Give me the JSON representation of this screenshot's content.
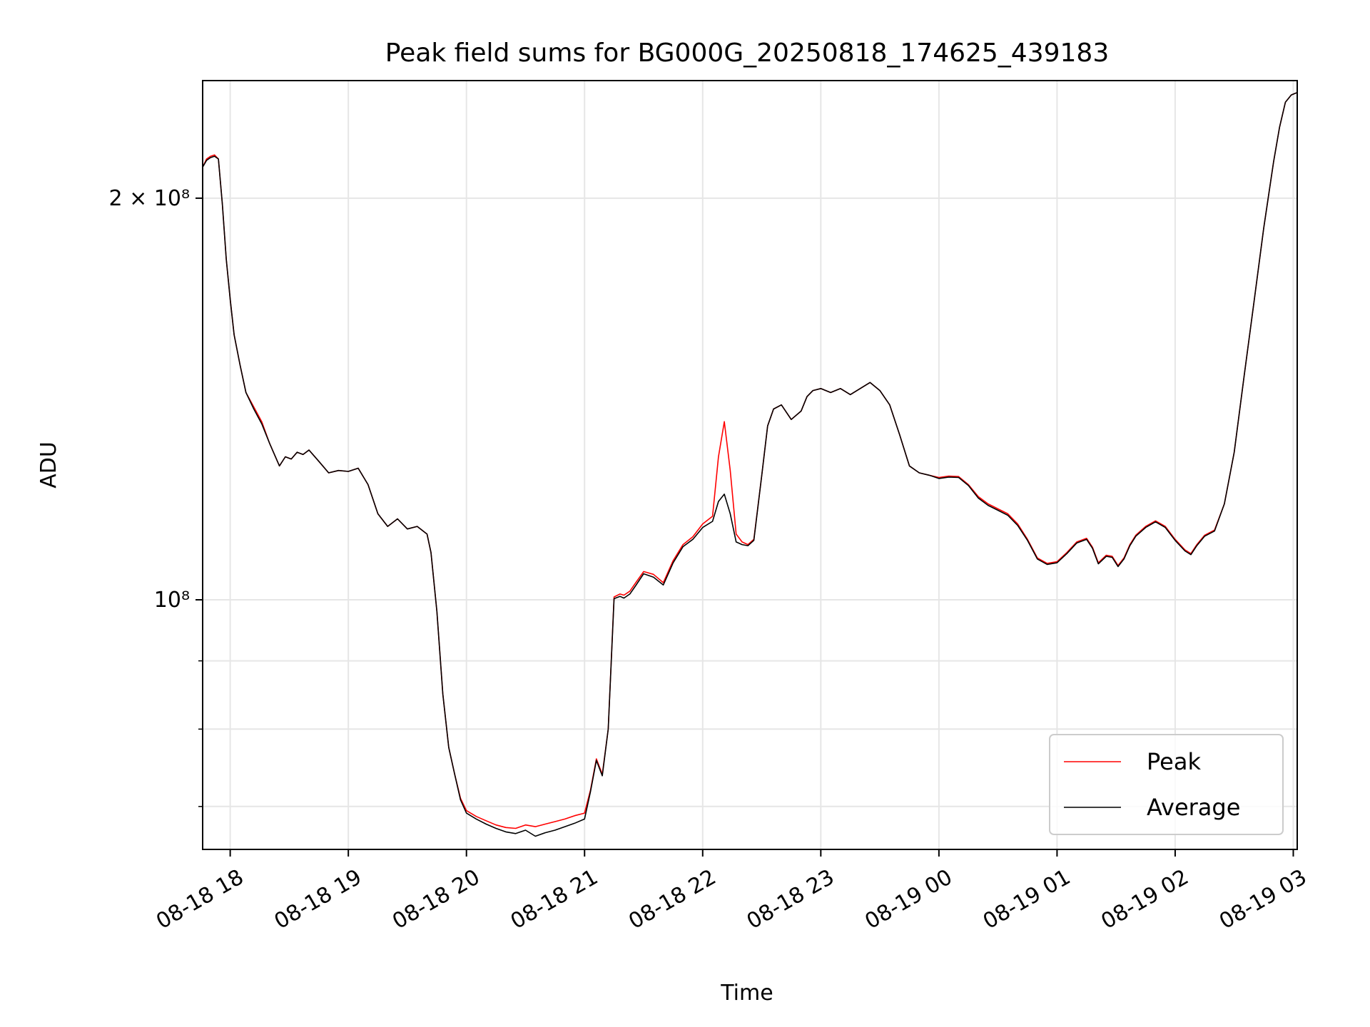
{
  "chart_data": {
    "type": "line",
    "title": "Peak field sums for BG000G_20250818_174625_439183",
    "xlabel": "Time",
    "ylabel": "ADU",
    "y_scale": "log",
    "ylim": [
      65000000,
      245000000
    ],
    "xlim": [
      "2025-08-18 17:46",
      "2025-08-19 03:02"
    ],
    "x_ticks": [
      {
        "t": "2025-08-18 18:00",
        "label": "08-18 18"
      },
      {
        "t": "2025-08-18 19:00",
        "label": "08-18 19"
      },
      {
        "t": "2025-08-18 20:00",
        "label": "08-18 20"
      },
      {
        "t": "2025-08-18 21:00",
        "label": "08-18 21"
      },
      {
        "t": "2025-08-18 22:00",
        "label": "08-18 22"
      },
      {
        "t": "2025-08-18 23:00",
        "label": "08-18 23"
      },
      {
        "t": "2025-08-19 00:00",
        "label": "08-19 00"
      },
      {
        "t": "2025-08-19 01:00",
        "label": "08-19 01"
      },
      {
        "t": "2025-08-19 02:00",
        "label": "08-19 02"
      },
      {
        "t": "2025-08-19 03:00",
        "label": "08-19 03"
      }
    ],
    "y_ticks": [
      {
        "v": 100000000,
        "label": "10⁸"
      },
      {
        "v": 200000000,
        "label": "2 × 10⁸"
      }
    ],
    "y_minor_ticks": [
      70000000,
      80000000,
      90000000
    ],
    "grid": true,
    "legend_position": "bottom-right",
    "x": [
      "2025-08-18 17:46",
      "2025-08-18 17:48",
      "2025-08-18 17:50",
      "2025-08-18 17:52",
      "2025-08-18 17:54",
      "2025-08-18 17:56",
      "2025-08-18 17:58",
      "2025-08-18 18:00",
      "2025-08-18 18:02",
      "2025-08-18 18:05",
      "2025-08-18 18:08",
      "2025-08-18 18:12",
      "2025-08-18 18:16",
      "2025-08-18 18:20",
      "2025-08-18 18:25",
      "2025-08-18 18:28",
      "2025-08-18 18:31",
      "2025-08-18 18:34",
      "2025-08-18 18:37",
      "2025-08-18 18:40",
      "2025-08-18 18:45",
      "2025-08-18 18:50",
      "2025-08-18 18:55",
      "2025-08-18 19:00",
      "2025-08-18 19:05",
      "2025-08-18 19:10",
      "2025-08-18 19:15",
      "2025-08-18 19:20",
      "2025-08-18 19:25",
      "2025-08-18 19:30",
      "2025-08-18 19:35",
      "2025-08-18 19:40",
      "2025-08-18 19:42",
      "2025-08-18 19:45",
      "2025-08-18 19:48",
      "2025-08-18 19:51",
      "2025-08-18 19:54",
      "2025-08-18 19:57",
      "2025-08-18 20:00",
      "2025-08-18 20:05",
      "2025-08-18 20:10",
      "2025-08-18 20:15",
      "2025-08-18 20:20",
      "2025-08-18 20:25",
      "2025-08-18 20:30",
      "2025-08-18 20:35",
      "2025-08-18 20:40",
      "2025-08-18 20:45",
      "2025-08-18 20:50",
      "2025-08-18 20:55",
      "2025-08-18 21:00",
      "2025-08-18 21:03",
      "2025-08-18 21:06",
      "2025-08-18 21:09",
      "2025-08-18 21:12",
      "2025-08-18 21:15",
      "2025-08-18 21:18",
      "2025-08-18 21:20",
      "2025-08-18 21:23",
      "2025-08-18 21:26",
      "2025-08-18 21:30",
      "2025-08-18 21:35",
      "2025-08-18 21:40",
      "2025-08-18 21:45",
      "2025-08-18 21:50",
      "2025-08-18 21:55",
      "2025-08-18 22:00",
      "2025-08-18 22:05",
      "2025-08-18 22:08",
      "2025-08-18 22:11",
      "2025-08-18 22:14",
      "2025-08-18 22:17",
      "2025-08-18 22:20",
      "2025-08-18 22:23",
      "2025-08-18 22:26",
      "2025-08-18 22:30",
      "2025-08-18 22:33",
      "2025-08-18 22:36",
      "2025-08-18 22:40",
      "2025-08-18 22:45",
      "2025-08-18 22:50",
      "2025-08-18 22:53",
      "2025-08-18 22:56",
      "2025-08-18 23:00",
      "2025-08-18 23:05",
      "2025-08-18 23:10",
      "2025-08-18 23:15",
      "2025-08-18 23:20",
      "2025-08-18 23:25",
      "2025-08-18 23:30",
      "2025-08-18 23:35",
      "2025-08-18 23:40",
      "2025-08-18 23:45",
      "2025-08-18 23:50",
      "2025-08-18 23:55",
      "2025-08-19 00:00",
      "2025-08-19 00:05",
      "2025-08-19 00:10",
      "2025-08-19 00:15",
      "2025-08-19 00:20",
      "2025-08-19 00:25",
      "2025-08-19 00:30",
      "2025-08-19 00:35",
      "2025-08-19 00:40",
      "2025-08-19 00:45",
      "2025-08-19 00:50",
      "2025-08-19 00:55",
      "2025-08-19 01:00",
      "2025-08-19 01:05",
      "2025-08-19 01:10",
      "2025-08-19 01:15",
      "2025-08-19 01:18",
      "2025-08-19 01:21",
      "2025-08-19 01:25",
      "2025-08-19 01:28",
      "2025-08-19 01:31",
      "2025-08-19 01:34",
      "2025-08-19 01:37",
      "2025-08-19 01:40",
      "2025-08-19 01:45",
      "2025-08-19 01:50",
      "2025-08-19 01:55",
      "2025-08-19 02:00",
      "2025-08-19 02:05",
      "2025-08-19 02:08",
      "2025-08-19 02:11",
      "2025-08-19 02:15",
      "2025-08-19 02:20",
      "2025-08-19 02:25",
      "2025-08-19 02:30",
      "2025-08-19 02:35",
      "2025-08-19 02:40",
      "2025-08-19 02:45",
      "2025-08-19 02:50",
      "2025-08-19 02:53",
      "2025-08-19 02:56",
      "2025-08-19 02:59",
      "2025-08-19 03:02"
    ],
    "series": [
      {
        "name": "Peak",
        "color": "#ff0000",
        "values": [
          211000000,
          214000000,
          215000000,
          215500000,
          214000000,
          198000000,
          180000000,
          168000000,
          158000000,
          150000000,
          143000000,
          139500000,
          136000000,
          131000000,
          126000000,
          128000000,
          127500000,
          129000000,
          128500000,
          129500000,
          127000000,
          124500000,
          125000000,
          124800000,
          125500000,
          122000000,
          116000000,
          113500000,
          115000000,
          113000000,
          113500000,
          112000000,
          108500000,
          98000000,
          85000000,
          77500000,
          74000000,
          71000000,
          69500000,
          68800000,
          68300000,
          67800000,
          67500000,
          67400000,
          67800000,
          67600000,
          67900000,
          68200000,
          68500000,
          68900000,
          69200000,
          72000000,
          76000000,
          74000000,
          80000000,
          100500000,
          101000000,
          100800000,
          101500000,
          103000000,
          105000000,
          104500000,
          103000000,
          107000000,
          110000000,
          111500000,
          114000000,
          115500000,
          128000000,
          136000000,
          125000000,
          112000000,
          110500000,
          110000000,
          111000000,
          124000000,
          135000000,
          139000000,
          140000000,
          136500000,
          138500000,
          142000000,
          143500000,
          144000000,
          143000000,
          144000000,
          142500000,
          144000000,
          145500000,
          143500000,
          140000000,
          133000000,
          126000000,
          124500000,
          124000000,
          123500000,
          123800000,
          123700000,
          122000000,
          119500000,
          118000000,
          117000000,
          116000000,
          114000000,
          111000000,
          107500000,
          106500000,
          106800000,
          108500000,
          110500000,
          111200000,
          109500000,
          106600000,
          108000000,
          107800000,
          106100000,
          107500000,
          110000000,
          111800000,
          113500000,
          114600000,
          113500000,
          111000000,
          109000000,
          108300000,
          110000000,
          111800000,
          112800000,
          118000000,
          129000000,
          147000000,
          167000000,
          190000000,
          213000000,
          226000000,
          236000000,
          239000000,
          240000000
        ]
      },
      {
        "name": "Average",
        "color": "#000000",
        "values": [
          211000000,
          213500000,
          214500000,
          215000000,
          214000000,
          198000000,
          180000000,
          168000000,
          158000000,
          150000000,
          143000000,
          139000000,
          135500000,
          131000000,
          126000000,
          128000000,
          127500000,
          129000000,
          128500000,
          129500000,
          127000000,
          124500000,
          125000000,
          124800000,
          125500000,
          122000000,
          116000000,
          113500000,
          115000000,
          113000000,
          113500000,
          112000000,
          108500000,
          98000000,
          85000000,
          77500000,
          74000000,
          70800000,
          69200000,
          68500000,
          67900000,
          67400000,
          67000000,
          66800000,
          67200000,
          66500000,
          66900000,
          67200000,
          67600000,
          68000000,
          68500000,
          71800000,
          75800000,
          73800000,
          80000000,
          100200000,
          100600000,
          100300000,
          101000000,
          102500000,
          104600000,
          104000000,
          102600000,
          106600000,
          109600000,
          111000000,
          113300000,
          114500000,
          118500000,
          120000000,
          116000000,
          110500000,
          110000000,
          109800000,
          110800000,
          124000000,
          135000000,
          139000000,
          140000000,
          136500000,
          138500000,
          142000000,
          143500000,
          144000000,
          143000000,
          144000000,
          142500000,
          144000000,
          145500000,
          143500000,
          140000000,
          133000000,
          126000000,
          124500000,
          124000000,
          123300000,
          123600000,
          123500000,
          121800000,
          119200000,
          117700000,
          116700000,
          115700000,
          113700000,
          110800000,
          107300000,
          106300000,
          106600000,
          108300000,
          110300000,
          111000000,
          109300000,
          106400000,
          107800000,
          107600000,
          105900000,
          107300000,
          109800000,
          111600000,
          113300000,
          114400000,
          113300000,
          110800000,
          108800000,
          108100000,
          109800000,
          111600000,
          112600000,
          118000000,
          129000000,
          147000000,
          167000000,
          190000000,
          213000000,
          226000000,
          236000000,
          239000000,
          240000000
        ]
      }
    ]
  }
}
